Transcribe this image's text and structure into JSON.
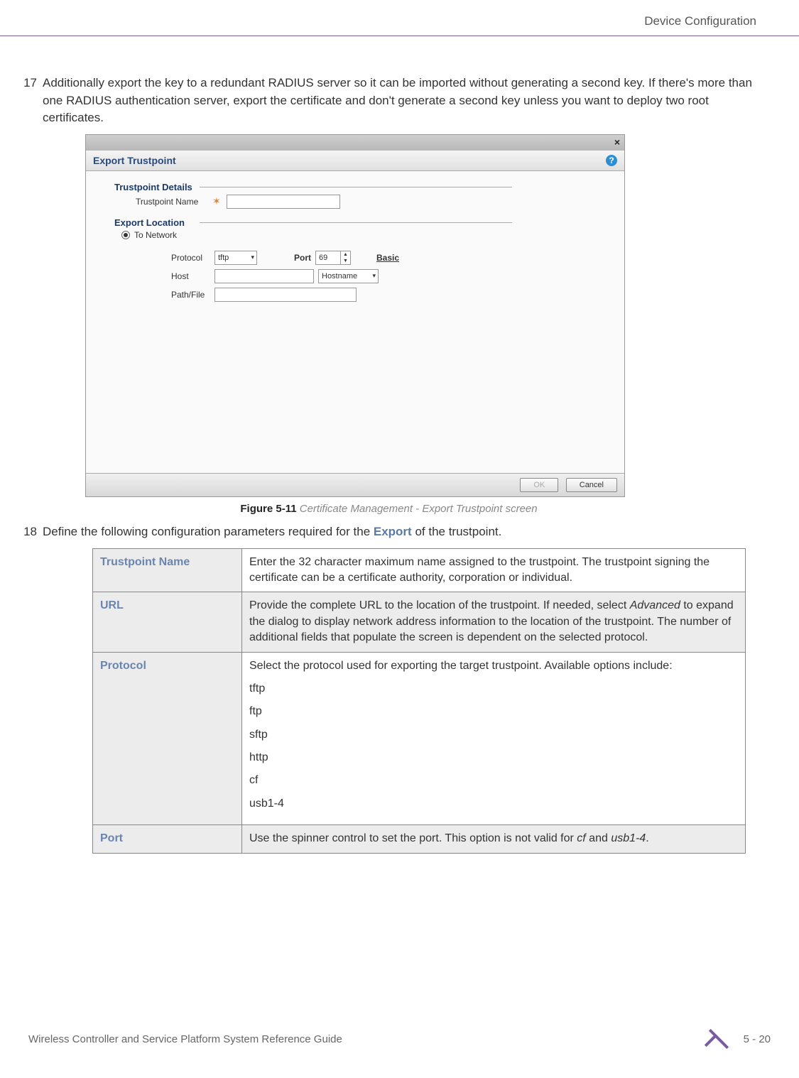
{
  "header": {
    "section": "Device Configuration"
  },
  "step17": {
    "num": "17",
    "text": "Additionally export the key to a redundant RADIUS server so it can be imported without generating a second key. If there's more than one RADIUS authentication server, export the certificate and don't generate a second key unless you want to deploy two root certificates."
  },
  "dialog": {
    "title": "Export Trustpoint",
    "section1": "Trustpoint Details",
    "trustpoint_name_label": "Trustpoint Name",
    "section2": "Export Location",
    "radio_to_network": "To Network",
    "protocol_label": "Protocol",
    "protocol_value": "tftp",
    "port_label": "Port",
    "port_value": "69",
    "basic_link": "Basic",
    "host_label": "Host",
    "hostname_label": "Hostname",
    "pathfile_label": "Path/File",
    "ok": "OK",
    "cancel": "Cancel"
  },
  "figure": {
    "label": "Figure 5-11",
    "caption": "Certificate Management - Export Trustpoint screen"
  },
  "step18": {
    "num": "18",
    "text_before": "Define the following configuration parameters required for the ",
    "export_word": "Export",
    "text_after": " of the trustpoint."
  },
  "table": {
    "rows": [
      {
        "name": "Trustpoint Name",
        "desc": "Enter the 32 character maximum name assigned to the trustpoint. The trustpoint signing the certificate can be a certificate authority, corporation or individual."
      },
      {
        "name": "URL",
        "desc_html": "Provide the complete URL to the location of the trustpoint. If needed, select <i>Advanced</i> to expand the dialog to display network address information to the location of the trustpoint. The number of additional fields that populate the screen is dependent on the selected protocol."
      },
      {
        "name": "Protocol",
        "desc": "Select the protocol used for exporting the target trustpoint. Available options include:",
        "protos": [
          "tftp",
          "ftp",
          "sftp",
          "http",
          "cf",
          "usb1-4"
        ]
      },
      {
        "name": "Port",
        "desc_html": "Use the spinner control to set the port. This option is not valid for <i>cf</i> and <i>usb1-4</i>."
      }
    ]
  },
  "footer": {
    "text": "Wireless Controller and Service Platform System Reference Guide",
    "page": "5 - 20"
  }
}
